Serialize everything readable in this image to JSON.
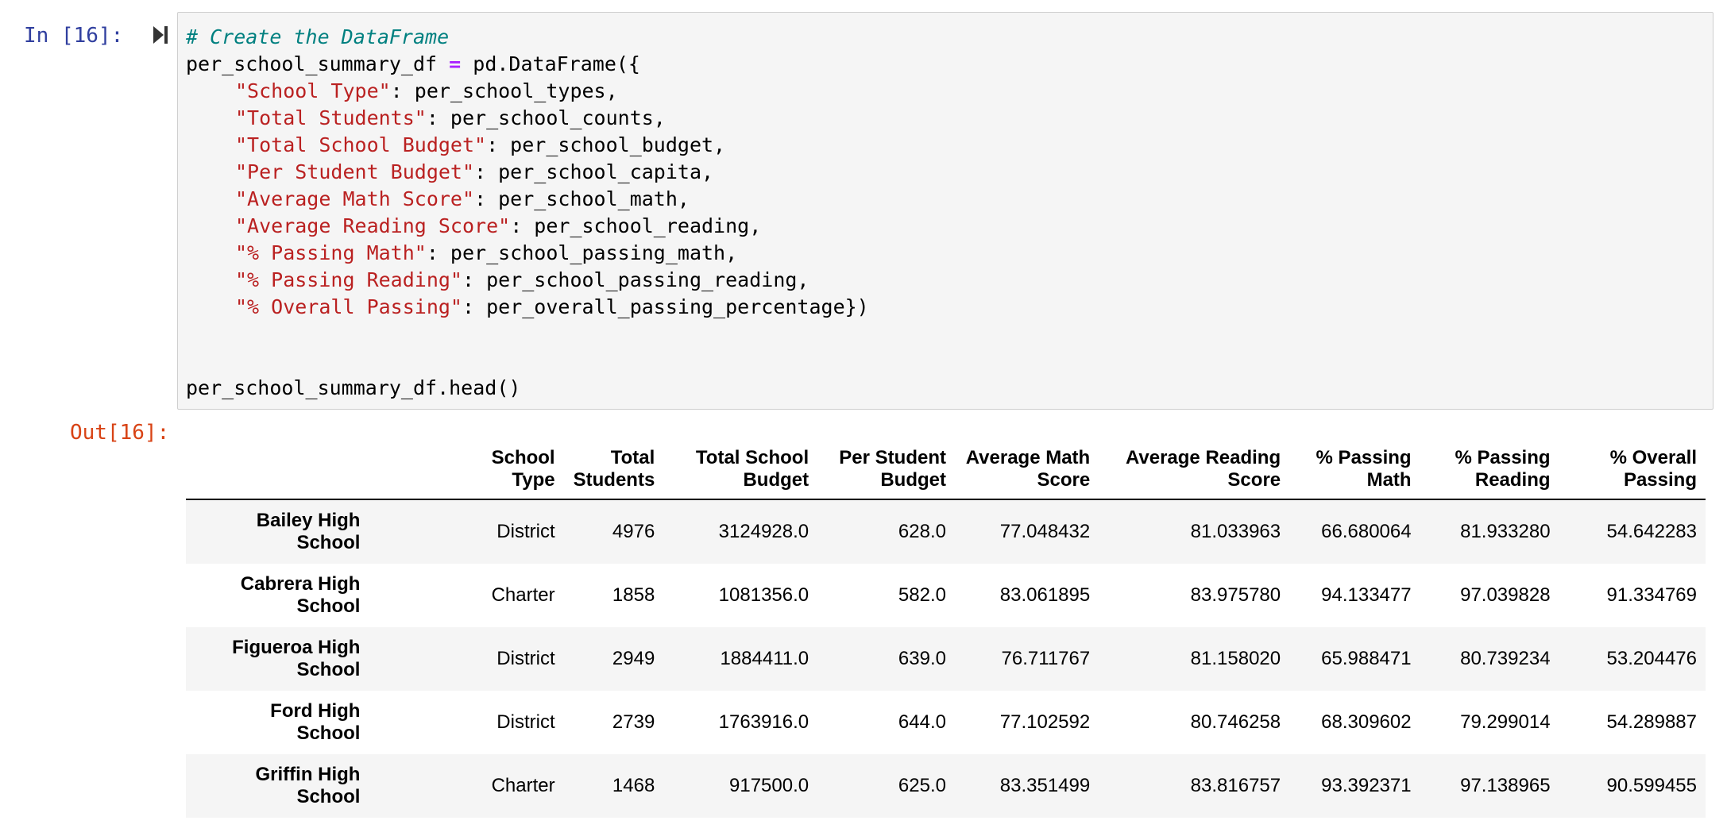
{
  "input_cell": {
    "prompt": "In [16]:",
    "run_icon": "run-cell-icon",
    "code": {
      "comment": "# Create the DataFrame",
      "var": "per_school_summary_df",
      "eq": "=",
      "call": "pd.DataFrame({",
      "entries": [
        {
          "key": "\"School Type\"",
          "value": ": per_school_types,"
        },
        {
          "key": "\"Total Students\"",
          "value": ": per_school_counts,"
        },
        {
          "key": "\"Total School Budget\"",
          "value": ": per_school_budget,"
        },
        {
          "key": "\"Per Student Budget\"",
          "value": ": per_school_capita,"
        },
        {
          "key": "\"Average Math Score\"",
          "value": ": per_school_math,"
        },
        {
          "key": "\"Average Reading Score\"",
          "value": ": per_school_reading,"
        },
        {
          "key": "\"% Passing Math\"",
          "value": ": per_school_passing_math,"
        },
        {
          "key": "\"% Passing Reading\"",
          "value": ": per_school_passing_reading,"
        },
        {
          "key": "\"% Overall Passing\"",
          "value": ": per_overall_passing_percentage})"
        }
      ],
      "last_line": "per_school_summary_df.head()"
    }
  },
  "output_cell": {
    "prompt": "Out[16]:",
    "table": {
      "columns": [
        [
          "School",
          "Type"
        ],
        [
          "Total",
          "Students"
        ],
        [
          "Total School",
          "Budget"
        ],
        [
          "Per Student",
          "Budget"
        ],
        [
          "Average Math",
          "Score"
        ],
        [
          "Average Reading",
          "Score"
        ],
        [
          "% Passing",
          "Math"
        ],
        [
          "% Passing",
          "Reading"
        ],
        [
          "% Overall",
          "Passing"
        ]
      ],
      "rows": [
        {
          "index": [
            "Bailey High",
            "School"
          ],
          "values": [
            "District",
            "4976",
            "3124928.0",
            "628.0",
            "77.048432",
            "81.033963",
            "66.680064",
            "81.933280",
            "54.642283"
          ]
        },
        {
          "index": [
            "Cabrera High",
            "School"
          ],
          "values": [
            "Charter",
            "1858",
            "1081356.0",
            "582.0",
            "83.061895",
            "83.975780",
            "94.133477",
            "97.039828",
            "91.334769"
          ]
        },
        {
          "index": [
            "Figueroa High",
            "School"
          ],
          "values": [
            "District",
            "2949",
            "1884411.0",
            "639.0",
            "76.711767",
            "81.158020",
            "65.988471",
            "80.739234",
            "53.204476"
          ]
        },
        {
          "index": [
            "Ford High",
            "School"
          ],
          "values": [
            "District",
            "2739",
            "1763916.0",
            "644.0",
            "77.102592",
            "80.746258",
            "68.309602",
            "79.299014",
            "54.289887"
          ]
        },
        {
          "index": [
            "Griffin High",
            "School"
          ],
          "values": [
            "Charter",
            "1468",
            "917500.0",
            "625.0",
            "83.351499",
            "83.816757",
            "93.392371",
            "97.138965",
            "90.599455"
          ]
        }
      ]
    }
  }
}
